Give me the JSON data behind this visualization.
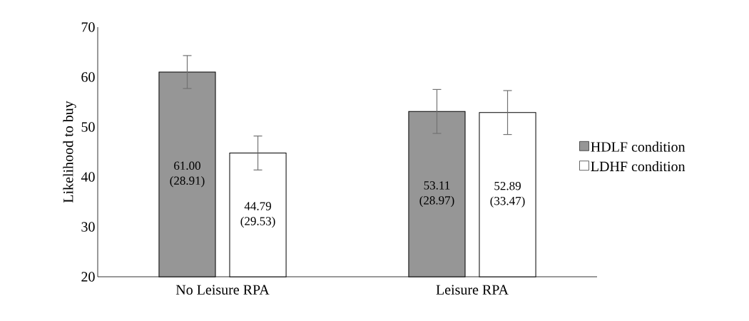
{
  "chart_data": {
    "type": "bar",
    "ylabel": "Likelihood to buy",
    "categories": [
      "No Leisure RPA",
      "Leisure RPA"
    ],
    "series": [
      {
        "name": "HDLF condition",
        "color": "#969696",
        "values": [
          61.0,
          53.11
        ],
        "errors": [
          3.3,
          4.4
        ],
        "value_labels": [
          "61.00 (28.91)",
          "53.11 (28.97)"
        ]
      },
      {
        "name": "LDHF condition",
        "color": "#ffffff",
        "values": [
          44.79,
          52.89
        ],
        "errors": [
          3.4,
          4.4
        ],
        "value_labels": [
          "44.79 (29.53)",
          "52.89 (33.47)"
        ]
      }
    ],
    "ylim": [
      20,
      70
    ],
    "yticks": [
      20,
      30,
      40,
      50,
      60,
      70
    ],
    "grid": false,
    "legend": "right"
  }
}
